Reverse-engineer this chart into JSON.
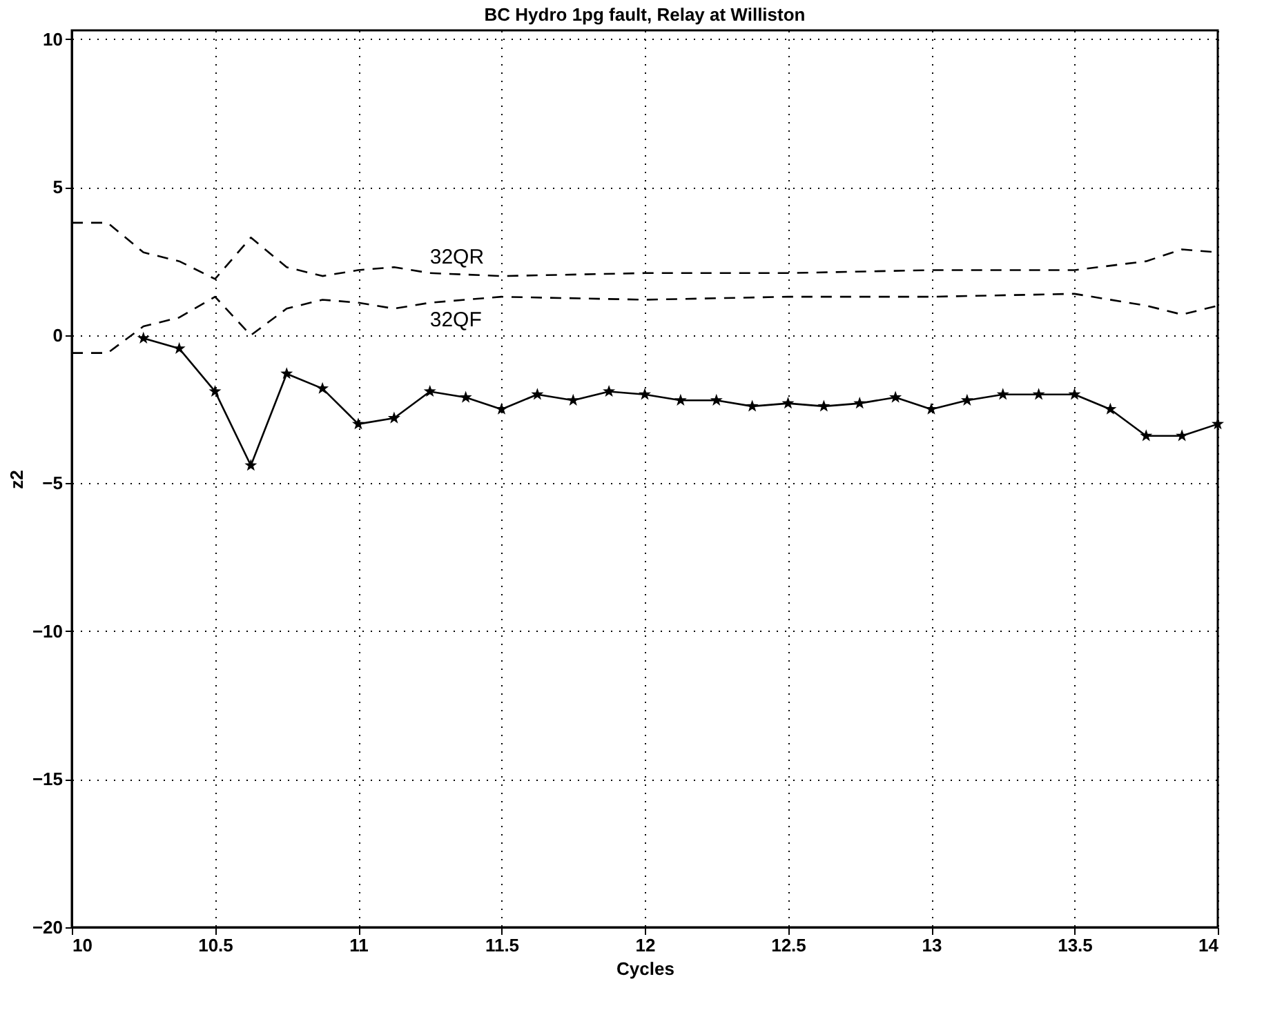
{
  "chart_data": {
    "type": "line",
    "title": "BC Hydro 1pg fault, Relay at Williston",
    "xlabel": "Cycles",
    "ylabel": "z2",
    "xlim": [
      10,
      14
    ],
    "xticks": [
      10,
      10.5,
      11,
      11.5,
      12,
      12.5,
      13,
      13.5,
      14
    ],
    "ylim": [
      -20,
      10.3
    ],
    "yticks": [
      -20,
      -15,
      -10,
      -5,
      0,
      5,
      10
    ],
    "grid": true,
    "legend": false,
    "series": [
      {
        "name": "32QR",
        "color": "#000000",
        "line_style": "dashed",
        "marker": "none",
        "x": [
          10,
          10.125,
          10.25,
          10.375,
          10.5,
          10.625,
          10.75,
          10.875,
          11,
          11.125,
          11.25,
          11.5,
          12,
          12.5,
          13,
          13.5,
          13.75,
          13.875,
          14
        ],
        "values": [
          3.8,
          3.8,
          2.8,
          2.5,
          1.9,
          3.3,
          2.3,
          2.0,
          2.2,
          2.3,
          2.1,
          2.0,
          2.1,
          2.1,
          2.2,
          2.2,
          2.5,
          2.9,
          2.8
        ]
      },
      {
        "name": "32QF",
        "color": "#000000",
        "line_style": "dashed",
        "marker": "none",
        "x": [
          10,
          10.125,
          10.25,
          10.375,
          10.5,
          10.625,
          10.75,
          10.875,
          11,
          11.125,
          11.25,
          11.5,
          12,
          12.5,
          13,
          13.5,
          13.75,
          13.875,
          14
        ],
        "values": [
          -0.6,
          -0.6,
          0.3,
          0.6,
          1.3,
          0.0,
          0.9,
          1.2,
          1.1,
          0.9,
          1.1,
          1.3,
          1.2,
          1.3,
          1.3,
          1.4,
          1.0,
          0.7,
          1.0
        ]
      },
      {
        "color": "#000000",
        "line_style": "solid",
        "marker": "star",
        "x": [
          10.25,
          10.375,
          10.5,
          10.625,
          10.75,
          10.875,
          11,
          11.125,
          11.25,
          11.375,
          11.5,
          11.625,
          11.75,
          11.875,
          12,
          12.125,
          12.25,
          12.375,
          12.5,
          12.625,
          12.75,
          12.875,
          13,
          13.125,
          13.25,
          13.375,
          13.5,
          13.625,
          13.75,
          13.875,
          14
        ],
        "values": [
          -0.1,
          -0.45,
          -1.9,
          -4.4,
          -1.3,
          -1.8,
          -3.0,
          -2.8,
          -1.9,
          -2.1,
          -2.5,
          -2.0,
          -2.2,
          -1.9,
          -2.0,
          -2.2,
          -2.2,
          -2.4,
          -2.3,
          -2.4,
          -2.3,
          -2.1,
          -2.5,
          -2.2,
          -2.0,
          -2.0,
          -2.0,
          -2.5,
          -3.4,
          -3.4,
          -3.0
        ]
      }
    ]
  }
}
